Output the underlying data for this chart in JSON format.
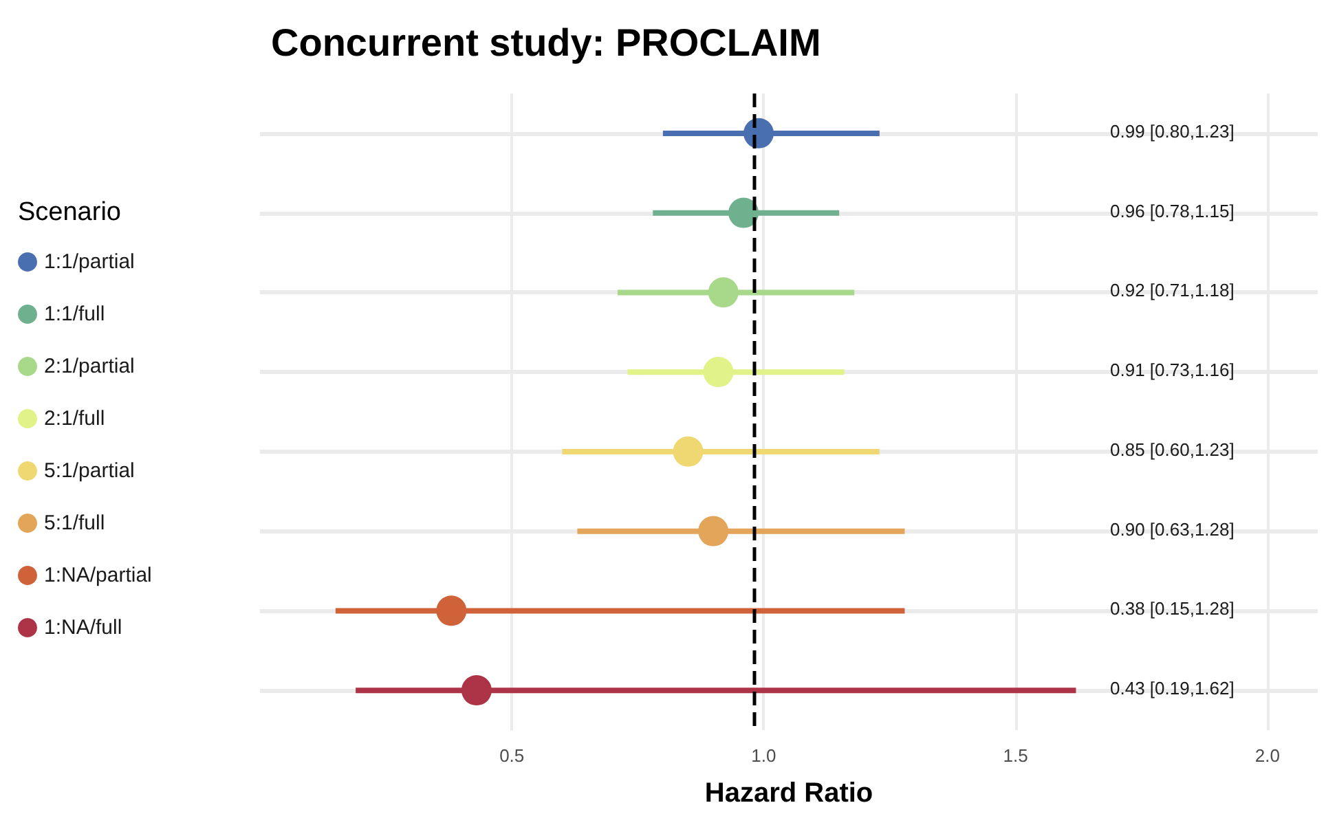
{
  "chart_data": {
    "type": "scatter",
    "title": "Concurrent study: PROCLAIM",
    "xlabel": "Hazard Ratio",
    "legend_title": "Scenario",
    "orientation": "horizontal",
    "categories": [
      null,
      null,
      null,
      null,
      null,
      null,
      null,
      null
    ],
    "xlim": [
      0,
      2.1
    ],
    "xticks": [
      0.5,
      {
        "value": 1,
        "label": "1.0"
      },
      1.5,
      {
        "value": 2,
        "label": "2.0"
      }
    ],
    "grid": true,
    "legend": "left",
    "tick_labels": "x",
    "marker": "circle",
    "ref_lines": [
      {
        "axis": "x",
        "value": 0.98,
        "color": "#000000",
        "line_style": "dashed"
      }
    ],
    "annotations": [
      "0.99 [0.80,1.23]",
      "0.96 [0.78,1.15]",
      "0.92 [0.71,1.18]",
      "0.91 [0.73,1.16]",
      "0.85 [0.60,1.23]",
      "0.90 [0.63,1.28]",
      "0.38 [0.15,1.28]",
      "0.43 [0.19,1.62]"
    ],
    "series": [
      {
        "name": "1:1/partial",
        "color": "#4a6fb0",
        "values": [
          0.99,
          null,
          null,
          null,
          null,
          null,
          null,
          null
        ],
        "errors": [
          [
            0.8,
            1.23
          ],
          null,
          null,
          null,
          null,
          null,
          null,
          null
        ]
      },
      {
        "name": "1:1/full",
        "color": "#6fb08e",
        "values": [
          null,
          0.96,
          null,
          null,
          null,
          null,
          null,
          null
        ],
        "errors": [
          null,
          [
            0.78,
            1.15
          ],
          null,
          null,
          null,
          null,
          null,
          null
        ]
      },
      {
        "name": "2:1/partial",
        "color": "#a8d88a",
        "values": [
          null,
          null,
          0.92,
          null,
          null,
          null,
          null,
          null
        ],
        "errors": [
          null,
          null,
          [
            0.71,
            1.18
          ],
          null,
          null,
          null,
          null,
          null
        ]
      },
      {
        "name": "2:1/full",
        "color": "#e0f288",
        "values": [
          null,
          null,
          null,
          0.91,
          null,
          null,
          null,
          null
        ],
        "errors": [
          null,
          null,
          null,
          [
            0.73,
            1.16
          ],
          null,
          null,
          null,
          null
        ]
      },
      {
        "name": "5:1/partial",
        "color": "#efd872",
        "values": [
          null,
          null,
          null,
          null,
          0.85,
          null,
          null,
          null
        ],
        "errors": [
          null,
          null,
          null,
          null,
          [
            0.6,
            1.23
          ],
          null,
          null,
          null
        ]
      },
      {
        "name": "5:1/full",
        "color": "#e3a55a",
        "values": [
          null,
          null,
          null,
          null,
          null,
          0.9,
          null,
          null
        ],
        "errors": [
          null,
          null,
          null,
          null,
          null,
          [
            0.63,
            1.28
          ],
          null,
          null
        ]
      },
      {
        "name": "1:NA/partial",
        "color": "#d0623a",
        "values": [
          null,
          null,
          null,
          null,
          null,
          null,
          0.38,
          null
        ],
        "errors": [
          null,
          null,
          null,
          null,
          null,
          null,
          [
            0.15,
            1.28
          ],
          null
        ]
      },
      {
        "name": "1:NA/full",
        "color": "#ad3346",
        "values": [
          null,
          null,
          null,
          null,
          null,
          null,
          null,
          0.43
        ],
        "errors": [
          null,
          null,
          null,
          null,
          null,
          null,
          null,
          [
            0.19,
            1.62
          ]
        ]
      }
    ]
  }
}
